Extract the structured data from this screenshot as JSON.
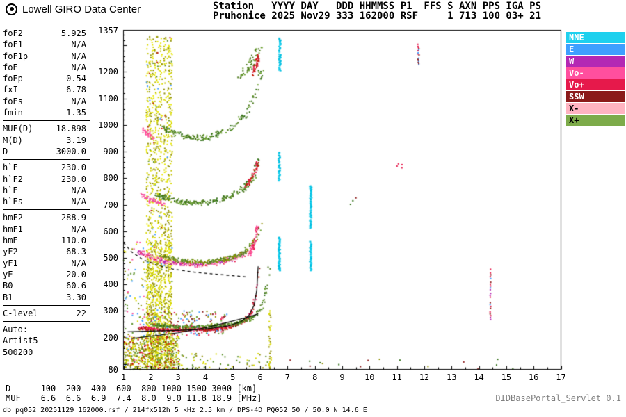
{
  "header": {
    "brand": "Lowell GIRO Data Center",
    "station_line1": "Station   YYYY DAY   DDD HHMMSS P1  FFS S AXN PPS IGA PS",
    "station_line2": "Pruhonice 2025 Nov29 333 162000 RSF     1 713 100 03+ 21"
  },
  "params": {
    "groups": [
      {
        "rows": [
          [
            "foF2",
            "5.925"
          ],
          [
            "foF1",
            "N/A"
          ],
          [
            "foF1p",
            "N/A"
          ],
          [
            "foE",
            "N/A"
          ],
          [
            "foEp",
            "0.54"
          ],
          [
            "fxI",
            "6.78"
          ],
          [
            "foEs",
            "N/A"
          ],
          [
            "fmin",
            "1.35"
          ]
        ]
      },
      {
        "rows": [
          [
            "MUF(D)",
            "18.898"
          ],
          [
            "M(D)",
            "3.19"
          ],
          [
            "D",
            "3000.0"
          ]
        ]
      },
      {
        "rows": [
          [
            "h`F",
            "230.0"
          ],
          [
            "h`F2",
            "230.0"
          ],
          [
            "h`E",
            "N/A"
          ],
          [
            "h`Es",
            "N/A"
          ]
        ]
      },
      {
        "rows": [
          [
            "hmF2",
            "288.9"
          ],
          [
            "hmF1",
            "N/A"
          ],
          [
            "hmE",
            "110.0"
          ],
          [
            "yF2",
            "68.3"
          ],
          [
            "yF1",
            "N/A"
          ],
          [
            "yE",
            "20.0"
          ],
          [
            "B0",
            "60.6"
          ],
          [
            "B1",
            "3.30"
          ]
        ]
      },
      {
        "rows": [
          [
            "C-level",
            "22"
          ]
        ]
      },
      {
        "rows": [
          [
            "Auto:",
            ""
          ],
          [
            "Artist5",
            ""
          ],
          [
            "500200",
            ""
          ]
        ],
        "no_border": true
      }
    ]
  },
  "chart_data": {
    "type": "scatter",
    "title": "Pruhonice ionogram 2025 Nov29 333 162000",
    "xlabel": "[MHz]",
    "ylabel": "[km]",
    "xlim": [
      1,
      17
    ],
    "ylim": [
      80,
      1357
    ],
    "grid": false,
    "legend_position": "top-right",
    "x_ticks": [
      1,
      2,
      3,
      4,
      5,
      6,
      7,
      8,
      9,
      10,
      11,
      12,
      13,
      14,
      15,
      16,
      17
    ],
    "y_tick_labels": [
      1357,
      1200,
      1100,
      1000,
      900,
      800,
      700,
      600,
      500,
      400,
      300,
      200,
      80
    ],
    "legend": [
      {
        "label": "NNE",
        "color": "#1ed0ee",
        "text_color": "#ffffff"
      },
      {
        "label": "E",
        "color": "#3e9fff",
        "text_color": "#ffffff"
      },
      {
        "label": "W",
        "color": "#b428b4",
        "text_color": "#ffffff"
      },
      {
        "label": "Vo-",
        "color": "#ff4f9e",
        "text_color": "#ffffff"
      },
      {
        "label": "Vo+",
        "color": "#e6194b",
        "text_color": "#ffffff"
      },
      {
        "label": "SSW",
        "color": "#8b1a1a",
        "text_color": "#ffffff"
      },
      {
        "label": "X-",
        "color": "#ffb3c1",
        "text_color": "#000000"
      },
      {
        "label": "X+",
        "color": "#7dab4a",
        "text_color": "#000000"
      }
    ],
    "curves": [
      {
        "name": "hF-trace-fit",
        "style": "solid",
        "color": "#000000",
        "width": 1.2,
        "points": [
          [
            1.15,
            222
          ],
          [
            2.0,
            224
          ],
          [
            3.0,
            227
          ],
          [
            4.0,
            232
          ],
          [
            4.8,
            243
          ],
          [
            5.3,
            260
          ],
          [
            5.6,
            285
          ],
          [
            5.78,
            322
          ],
          [
            5.88,
            382
          ],
          [
            5.925,
            468
          ]
        ]
      },
      {
        "name": "true-height-profile",
        "style": "solid",
        "color": "#000000",
        "width": 1.2,
        "points": [
          [
            1.3,
            196
          ],
          [
            2.0,
            205
          ],
          [
            3.0,
            218
          ],
          [
            4.0,
            237
          ],
          [
            4.8,
            257
          ],
          [
            5.4,
            273
          ],
          [
            5.75,
            283
          ],
          [
            5.925,
            289
          ]
        ]
      },
      {
        "name": "muf-transmission-curve",
        "style": "dashed",
        "color": "#000000",
        "width": 1.2,
        "points": [
          [
            1.0,
            557
          ],
          [
            1.3,
            522
          ],
          [
            1.7,
            494
          ],
          [
            2.2,
            473
          ],
          [
            2.8,
            458
          ],
          [
            3.5,
            447
          ],
          [
            4.2,
            440
          ],
          [
            5.0,
            433
          ],
          [
            5.55,
            428
          ]
        ]
      }
    ],
    "echo_clusters": [
      {
        "name": "rfi-stripes",
        "kind": "stripes",
        "freqs": [
          1.88,
          1.98,
          2.08,
          2.18,
          2.28,
          2.38,
          2.52,
          2.64,
          2.74
        ],
        "h_range": [
          84,
          1332
        ],
        "step": 3,
        "density_low": 0.62,
        "density_high": 0.28,
        "split_h": 560,
        "colors": [
          "#d9d900",
          "#c2c200",
          "#8f8f00",
          "#e8e800"
        ],
        "accent_colors": [
          "#c21807",
          "#5a8f28",
          "#3e9fff"
        ],
        "accent_p": 0.05,
        "size": [
          2,
          2
        ]
      },
      {
        "name": "rfi-stripe-6.35",
        "kind": "stripes",
        "freqs": [
          6.36
        ],
        "h_range": [
          84,
          300
        ],
        "step": 4,
        "density_low": 0.38,
        "density_high": 0.2,
        "split_h": 560,
        "colors": [
          "#d9d900",
          "#8f8f00"
        ],
        "accent_p": 0,
        "size": [
          2,
          2
        ]
      },
      {
        "name": "bottom-noise",
        "kind": "noise",
        "f_range": [
          1.02,
          3.05
        ],
        "h_range": [
          80,
          205
        ],
        "count": 520,
        "colors": [
          "#d9d900",
          "#8f8f00",
          "#c2c200",
          "#5a8f28",
          "#c21807"
        ],
        "size": [
          2,
          2
        ]
      },
      {
        "name": "left-edge-noise",
        "kind": "noise",
        "f_range": [
          1.0,
          1.8
        ],
        "h_range": [
          80,
          560
        ],
        "count": 90,
        "colors": [
          "#d9d900",
          "#8f8f00",
          "#3e9fff",
          "#ff4f9e",
          "#5a8f28"
        ],
        "size": [
          2,
          2
        ]
      },
      {
        "name": "low-noise-sparse",
        "kind": "noise",
        "f_range": [
          3.0,
          6.3
        ],
        "h_range": [
          80,
          140
        ],
        "count": 60,
        "colors": [
          "#d9d900",
          "#8f8f00",
          "#5a8f28"
        ],
        "size": [
          2,
          2
        ]
      },
      {
        "name": "hi-f-specks",
        "kind": "noise",
        "f_range": [
          6.4,
          15.3
        ],
        "h_range": [
          80,
          118
        ],
        "count": 16,
        "colors": [
          "#8f8f00",
          "#2f6e14",
          "#8b1a1a"
        ],
        "size": [
          2,
          2
        ]
      },
      {
        "name": "hop1-o-ray",
        "kind": "arc",
        "points": [
          [
            1.55,
            236
          ],
          [
            2.4,
            229
          ],
          [
            3.4,
            228
          ],
          [
            4.4,
            232
          ],
          [
            5.0,
            242
          ],
          [
            5.45,
            262
          ],
          [
            5.7,
            295
          ],
          [
            5.85,
            355
          ],
          [
            5.93,
            468
          ]
        ],
        "count": 380,
        "f_jitter": 0.06,
        "h_jitter": 8,
        "colors": [
          "#e6194b",
          "#c21807",
          "#8b1a1a",
          "#ff4f9e"
        ],
        "size": [
          2,
          2
        ]
      },
      {
        "name": "hop1-x-ray",
        "kind": "arc",
        "points": [
          [
            2.0,
            248
          ],
          [
            3.0,
            240
          ],
          [
            4.2,
            242
          ],
          [
            5.1,
            252
          ],
          [
            5.7,
            272
          ],
          [
            6.05,
            310
          ],
          [
            6.25,
            390
          ],
          [
            6.33,
            465
          ]
        ],
        "count": 320,
        "f_jitter": 0.07,
        "h_jitter": 8,
        "colors": [
          "#6ca032",
          "#4e7a1e",
          "#2f6e14"
        ],
        "size": [
          2,
          2
        ]
      },
      {
        "name": "hop1-mixed",
        "kind": "noise",
        "f_range": [
          1.9,
          4.8
        ],
        "h_range": [
          208,
          300
        ],
        "count": 150,
        "colors": [
          "#3e9fff",
          "#8b1a1a",
          "#8f8f00",
          "#6ca032",
          "#e6194b"
        ],
        "size": [
          2,
          2
        ]
      },
      {
        "name": "hop2-o-ray",
        "kind": "arc",
        "points": [
          [
            1.55,
            525
          ],
          [
            2.1,
            497
          ],
          [
            2.8,
            482
          ],
          [
            3.6,
            474
          ],
          [
            4.4,
            480
          ],
          [
            5.0,
            495
          ],
          [
            5.5,
            520
          ]
        ],
        "count": 300,
        "f_jitter": 0.08,
        "h_jitter": 11,
        "colors": [
          "#ff4f9e",
          "#e8559e",
          "#e6194b",
          "#b428b4",
          "#ffb3c1"
        ],
        "size": [
          2,
          2
        ]
      },
      {
        "name": "hop2-x-ray",
        "kind": "arc",
        "points": [
          [
            2.3,
            508
          ],
          [
            3.1,
            490
          ],
          [
            4.0,
            484
          ],
          [
            4.8,
            495
          ],
          [
            5.4,
            520
          ],
          [
            5.8,
            565
          ],
          [
            6.05,
            625
          ]
        ],
        "count": 260,
        "f_jitter": 0.08,
        "h_jitter": 10,
        "colors": [
          "#6ca032",
          "#4e7a1e",
          "#8f8f00"
        ],
        "size": [
          2,
          2
        ]
      },
      {
        "name": "hop2-red-cusp",
        "kind": "arc",
        "points": [
          [
            5.6,
            510
          ],
          [
            5.8,
            555
          ],
          [
            5.92,
            635
          ]
        ],
        "count": 60,
        "f_jitter": 0.05,
        "h_jitter": 9,
        "colors": [
          "#e6194b",
          "#ff4f9e"
        ],
        "size": [
          2,
          2
        ]
      },
      {
        "name": "hop3-o-left",
        "kind": "arc",
        "points": [
          [
            1.6,
            745
          ],
          [
            2.0,
            716
          ],
          [
            2.5,
            702
          ]
        ],
        "count": 55,
        "f_jitter": 0.07,
        "h_jitter": 9,
        "colors": [
          "#ff4f9e",
          "#e8559e"
        ],
        "size": [
          2,
          2
        ]
      },
      {
        "name": "hop3-x-ray",
        "kind": "arc",
        "points": [
          [
            2.2,
            735
          ],
          [
            3.0,
            712
          ],
          [
            3.9,
            706
          ],
          [
            4.7,
            722
          ],
          [
            5.3,
            752
          ],
          [
            5.75,
            805
          ],
          [
            5.95,
            872
          ]
        ],
        "count": 220,
        "f_jitter": 0.09,
        "h_jitter": 12,
        "colors": [
          "#6ca032",
          "#4e7a1e",
          "#2f6e14"
        ],
        "size": [
          2,
          2
        ]
      },
      {
        "name": "hop3-red-cusp",
        "kind": "arc",
        "points": [
          [
            5.5,
            770
          ],
          [
            5.8,
            822
          ],
          [
            5.95,
            880
          ]
        ],
        "count": 40,
        "f_jitter": 0.05,
        "h_jitter": 10,
        "colors": [
          "#e6194b",
          "#c21807"
        ],
        "size": [
          2,
          2
        ]
      },
      {
        "name": "hop4-o-left",
        "kind": "arc",
        "points": [
          [
            1.7,
            985
          ],
          [
            2.1,
            952
          ]
        ],
        "count": 30,
        "f_jitter": 0.07,
        "h_jitter": 10,
        "colors": [
          "#ff4f9e"
        ],
        "size": [
          2,
          2
        ]
      },
      {
        "name": "hop4-x-ray",
        "kind": "arc",
        "points": [
          [
            2.4,
            990
          ],
          [
            3.2,
            956
          ],
          [
            4.1,
            952
          ],
          [
            4.9,
            985
          ],
          [
            5.5,
            1040
          ],
          [
            5.85,
            1120
          ],
          [
            6.05,
            1215
          ]
        ],
        "count": 185,
        "f_jitter": 0.1,
        "h_jitter": 14,
        "colors": [
          "#6ca032",
          "#4e7a1e",
          "#2f6e14"
        ],
        "size": [
          2,
          2
        ]
      },
      {
        "name": "hop5-x-spread",
        "kind": "arc",
        "points": [
          [
            5.3,
            1180
          ],
          [
            5.7,
            1232
          ],
          [
            6.0,
            1300
          ]
        ],
        "count": 55,
        "f_jitter": 0.12,
        "h_jitter": 16,
        "colors": [
          "#6ca032",
          "#4e7a1e"
        ],
        "size": [
          2,
          2
        ]
      },
      {
        "name": "hop5-red",
        "kind": "arc",
        "points": [
          [
            5.75,
            1192
          ],
          [
            5.95,
            1262
          ]
        ],
        "count": 35,
        "f_jitter": 0.06,
        "h_jitter": 12,
        "colors": [
          "#e6194b",
          "#c21807"
        ],
        "size": [
          2,
          2
        ]
      },
      {
        "name": "nne-band-6.7-low",
        "kind": "vband",
        "f": 6.7,
        "segments": [
          [
            452,
            578
          ]
        ],
        "step": 2.4,
        "density": 0.92,
        "f_jitter": 0.028,
        "colors": [
          "#1ed0ee",
          "#00bfe0"
        ],
        "size": [
          3,
          2
        ]
      },
      {
        "name": "nne-band-6.7-mid",
        "kind": "vband",
        "f": 6.7,
        "segments": [
          [
            790,
            900
          ]
        ],
        "step": 2.6,
        "density": 0.8,
        "f_jitter": 0.028,
        "colors": [
          "#1ed0ee",
          "#00bfe0"
        ],
        "size": [
          3,
          2
        ]
      },
      {
        "name": "nne-band-6.7-high",
        "kind": "vband",
        "f": 6.72,
        "segments": [
          [
            1205,
            1330
          ]
        ],
        "step": 2.6,
        "density": 0.85,
        "f_jitter": 0.03,
        "colors": [
          "#1ed0ee",
          "#00bfe0"
        ],
        "size": [
          3,
          2
        ]
      },
      {
        "name": "nne-band-7.85",
        "kind": "vband",
        "f": 7.85,
        "segments": [
          [
            452,
            562
          ],
          [
            612,
            772
          ]
        ],
        "step": 2.6,
        "density": 0.85,
        "f_jitter": 0.028,
        "colors": [
          "#1ed0ee",
          "#00bfe0"
        ],
        "size": [
          3,
          2
        ]
      },
      {
        "name": "red-band-11.8",
        "kind": "vband",
        "f": 11.78,
        "segments": [
          [
            1228,
            1304
          ]
        ],
        "step": 4,
        "density": 0.7,
        "f_jitter": 0.03,
        "colors": [
          "#e6194b",
          "#8b1a1a",
          "#3e9fff"
        ],
        "size": [
          2,
          2
        ]
      },
      {
        "name": "mixed-band-14.4",
        "kind": "vband",
        "f": 14.42,
        "segments": [
          [
            268,
            462
          ]
        ],
        "step": 7,
        "density": 0.75,
        "f_jitter": 0.015,
        "colors": [
          "#e6194b",
          "#3e9fff",
          "#8b1a1a",
          "#b428b4"
        ],
        "size": [
          2,
          2
        ]
      },
      {
        "name": "speck-11.1",
        "kind": "noise",
        "f_range": [
          11.0,
          11.2
        ],
        "h_range": [
          838,
          862
        ],
        "count": 4,
        "colors": [
          "#e6194b"
        ],
        "size": [
          2,
          2
        ]
      },
      {
        "name": "speck-9.4",
        "kind": "noise",
        "f_range": [
          9.3,
          9.5
        ],
        "h_range": [
          698,
          730
        ],
        "count": 3,
        "colors": [
          "#8b1a1a",
          "#2f6e14"
        ],
        "size": [
          2,
          2
        ]
      }
    ]
  },
  "footer": {
    "dmuf": {
      "d_label": "D",
      "d_values": [
        "100",
        "200",
        "400",
        "600",
        "800",
        "1000",
        "1500",
        "3000"
      ],
      "d_unit": "[km]",
      "muf_label": "MUF",
      "muf_values": [
        "6.6",
        "6.6",
        "6.9",
        "7.4",
        "8.0",
        "9.0",
        "11.8",
        "18.9"
      ],
      "muf_unit": "[MHz]"
    },
    "servlet": "DIDBasePortal_Servlet 0.1",
    "status": "db pq052 20251129 162000.rsf / 214fx512h 5 kHz 2.5 km / DPS-4D PQ052 50 / 50.0 N 14.6 E"
  }
}
